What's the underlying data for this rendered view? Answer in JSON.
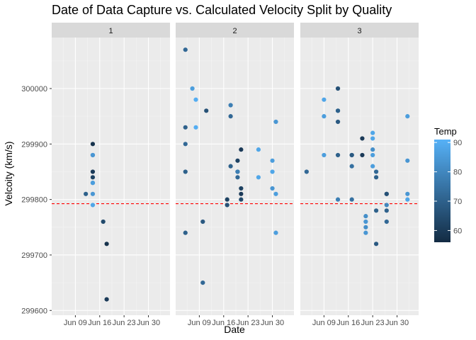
{
  "chart_data": {
    "type": "scatter",
    "title": "Date of Data Capture vs. Calculated Velocity Split by Quality",
    "xlabel": "Date",
    "ylabel": "Velcoity (km/s)",
    "x_ticks": [
      "Jun 09",
      "Jun 16",
      "Jun 23",
      "Jun 30"
    ],
    "x_tick_days": [
      9,
      16,
      23,
      30
    ],
    "xlim_days": [
      2.2,
      36.2
    ],
    "y_ticks": [
      299600,
      299700,
      299800,
      299900,
      300000
    ],
    "ylim": [
      299590,
      300090
    ],
    "reference_line": {
      "value": 299792.5,
      "color": "#ff0000",
      "style": "dashed"
    },
    "legend": {
      "title": "Temp",
      "ticks": [
        60,
        70,
        80,
        90
      ],
      "range": [
        56,
        91
      ],
      "low_color": "#132b43",
      "high_color": "#56b1f7",
      "placement": "right"
    },
    "panels": [
      {
        "label": "1",
        "points": [
          {
            "x": 12.0,
            "y": 299810,
            "temp": 70
          },
          {
            "x": 14.0,
            "y": 299900,
            "temp": 58
          },
          {
            "x": 14.0,
            "y": 299880,
            "temp": 82
          },
          {
            "x": 14.0,
            "y": 299880,
            "temp": 84
          },
          {
            "x": 14.0,
            "y": 299850,
            "temp": 60
          },
          {
            "x": 14.0,
            "y": 299840,
            "temp": 62
          },
          {
            "x": 14.0,
            "y": 299830,
            "temp": 80
          },
          {
            "x": 14.0,
            "y": 299830,
            "temp": 86
          },
          {
            "x": 14.0,
            "y": 299810,
            "temp": 84
          },
          {
            "x": 14.0,
            "y": 299790,
            "temp": 88
          },
          {
            "x": 17.0,
            "y": 299760,
            "temp": 64
          },
          {
            "x": 18.0,
            "y": 299720,
            "temp": 58
          },
          {
            "x": 18.0,
            "y": 299620,
            "temp": 60
          }
        ]
      },
      {
        "label": "2",
        "points": [
          {
            "x": 5.0,
            "y": 300070,
            "temp": 72
          },
          {
            "x": 5.0,
            "y": 299930,
            "temp": 70
          },
          {
            "x": 5.0,
            "y": 299900,
            "temp": 72
          },
          {
            "x": 5.0,
            "y": 299850,
            "temp": 70
          },
          {
            "x": 5.0,
            "y": 299740,
            "temp": 70
          },
          {
            "x": 7.0,
            "y": 300000,
            "temp": 86
          },
          {
            "x": 8.0,
            "y": 299980,
            "temp": 90
          },
          {
            "x": 8.0,
            "y": 299930,
            "temp": 90
          },
          {
            "x": 10.0,
            "y": 299760,
            "temp": 68
          },
          {
            "x": 10.0,
            "y": 299650,
            "temp": 72
          },
          {
            "x": 11.0,
            "y": 299960,
            "temp": 66
          },
          {
            "x": 17.0,
            "y": 299800,
            "temp": 62
          },
          {
            "x": 17.0,
            "y": 299790,
            "temp": 66
          },
          {
            "x": 18.0,
            "y": 299970,
            "temp": 78
          },
          {
            "x": 18.0,
            "y": 299950,
            "temp": 72
          },
          {
            "x": 18.0,
            "y": 299860,
            "temp": 70
          },
          {
            "x": 20.0,
            "y": 299870,
            "temp": 62
          },
          {
            "x": 20.0,
            "y": 299850,
            "temp": 70
          },
          {
            "x": 20.0,
            "y": 299850,
            "temp": 78
          },
          {
            "x": 20.0,
            "y": 299840,
            "temp": 72
          },
          {
            "x": 21.0,
            "y": 299890,
            "temp": 60
          },
          {
            "x": 21.0,
            "y": 299820,
            "temp": 62
          },
          {
            "x": 21.0,
            "y": 299810,
            "temp": 60
          },
          {
            "x": 21.0,
            "y": 299800,
            "temp": 64
          },
          {
            "x": 26.0,
            "y": 299890,
            "temp": 88
          },
          {
            "x": 26.0,
            "y": 299840,
            "temp": 88
          },
          {
            "x": 30.0,
            "y": 299870,
            "temp": 86
          },
          {
            "x": 30.0,
            "y": 299850,
            "temp": 88
          },
          {
            "x": 30.0,
            "y": 299820,
            "temp": 84
          },
          {
            "x": 31.0,
            "y": 299940,
            "temp": 84
          },
          {
            "x": 31.0,
            "y": 299810,
            "temp": 86
          },
          {
            "x": 31.0,
            "y": 299740,
            "temp": 86
          }
        ]
      },
      {
        "label": "3",
        "points": [
          {
            "x": 4.0,
            "y": 299850,
            "temp": 72
          },
          {
            "x": 9.0,
            "y": 299980,
            "temp": 88
          },
          {
            "x": 9.0,
            "y": 299950,
            "temp": 86
          },
          {
            "x": 9.0,
            "y": 299880,
            "temp": 86
          },
          {
            "x": 13.0,
            "y": 300000,
            "temp": 66
          },
          {
            "x": 13.0,
            "y": 299960,
            "temp": 74
          },
          {
            "x": 13.0,
            "y": 299960,
            "temp": 70
          },
          {
            "x": 13.0,
            "y": 299940,
            "temp": 68
          },
          {
            "x": 13.0,
            "y": 299880,
            "temp": 70
          },
          {
            "x": 13.0,
            "y": 299800,
            "temp": 78
          },
          {
            "x": 17.0,
            "y": 299880,
            "temp": 72
          },
          {
            "x": 17.0,
            "y": 299880,
            "temp": 68
          },
          {
            "x": 17.0,
            "y": 299860,
            "temp": 74
          },
          {
            "x": 17.0,
            "y": 299800,
            "temp": 74
          },
          {
            "x": 20.0,
            "y": 299910,
            "temp": 60
          },
          {
            "x": 20.0,
            "y": 299880,
            "temp": 60
          },
          {
            "x": 21.0,
            "y": 299770,
            "temp": 82
          },
          {
            "x": 21.0,
            "y": 299760,
            "temp": 84
          },
          {
            "x": 21.0,
            "y": 299750,
            "temp": 82
          },
          {
            "x": 21.0,
            "y": 299740,
            "temp": 84
          },
          {
            "x": 23.0,
            "y": 299920,
            "temp": 88
          },
          {
            "x": 23.0,
            "y": 299910,
            "temp": 88
          },
          {
            "x": 23.0,
            "y": 299890,
            "temp": 82
          },
          {
            "x": 23.0,
            "y": 299880,
            "temp": 86
          },
          {
            "x": 23.0,
            "y": 299860,
            "temp": 86
          },
          {
            "x": 24.0,
            "y": 299850,
            "temp": 72
          },
          {
            "x": 24.0,
            "y": 299840,
            "temp": 70
          },
          {
            "x": 24.0,
            "y": 299780,
            "temp": 70
          },
          {
            "x": 24.0,
            "y": 299720,
            "temp": 68
          },
          {
            "x": 27.0,
            "y": 299810,
            "temp": 62
          },
          {
            "x": 27.0,
            "y": 299810,
            "temp": 66
          },
          {
            "x": 27.0,
            "y": 299790,
            "temp": 80
          },
          {
            "x": 27.0,
            "y": 299780,
            "temp": 70
          },
          {
            "x": 27.0,
            "y": 299760,
            "temp": 72
          },
          {
            "x": 33.0,
            "y": 299950,
            "temp": 86
          },
          {
            "x": 33.0,
            "y": 299870,
            "temp": 84
          },
          {
            "x": 33.0,
            "y": 299810,
            "temp": 84
          },
          {
            "x": 33.0,
            "y": 299800,
            "temp": 88
          }
        ]
      }
    ]
  }
}
